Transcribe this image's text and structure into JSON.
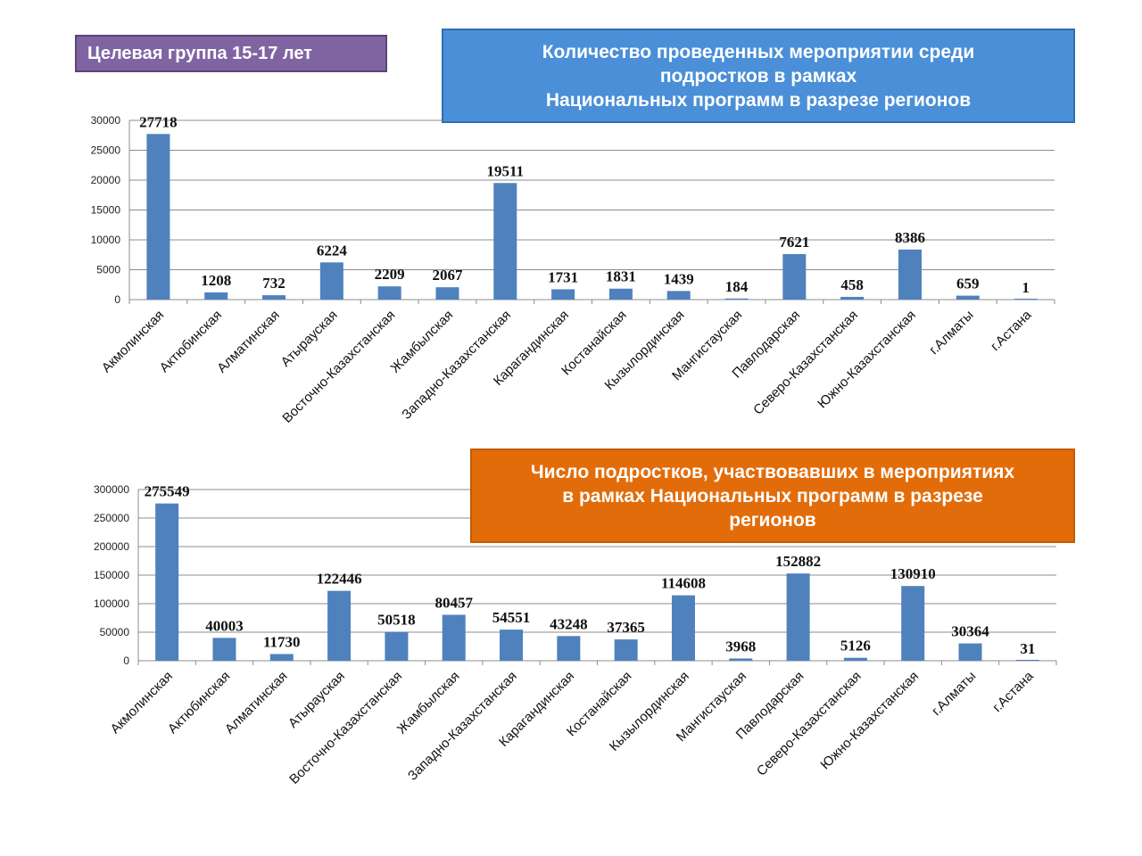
{
  "header": {
    "group_label": "Целевая группа 15-17 лет"
  },
  "colors": {
    "bar": "#4f81bd",
    "grid": "#8c8c8c",
    "badge": "#8064a2",
    "title_blue": "#4a8fd8",
    "title_orange": "#e36c0a"
  },
  "chart_data": [
    {
      "type": "bar",
      "title": "Количество проведенных мероприятии среди подростков в рамках Национальных программ в разрезе регионов",
      "title_lines": [
        "Количество проведенных мероприятии среди",
        "подростков в рамках",
        "Национальных программ в разрезе регионов"
      ],
      "categories": [
        "Акмолинская",
        "Актюбинская",
        "Алматинская",
        "Атырауская",
        "Восточно-Казахстанская",
        "Жамбылская",
        "Западно-Казахстанская",
        "Карагандинская",
        "Костанайская",
        "Кызылординская",
        "Мангистауская",
        "Павлодарская",
        "Северо-Казахстанская",
        "Южно-Казахстанская",
        "г.Алматы",
        "г.Астана"
      ],
      "values": [
        27718,
        1208,
        732,
        6224,
        2209,
        2067,
        19511,
        1731,
        1831,
        1439,
        184,
        7621,
        458,
        8386,
        659,
        1
      ],
      "ylim": [
        0,
        30000
      ],
      "yticks": [
        0,
        5000,
        10000,
        15000,
        20000,
        25000,
        30000
      ],
      "grid": true,
      "legend": "none"
    },
    {
      "type": "bar",
      "title": "Число подростков, участвовавших в мероприятиях в рамках Национальных программ в разрезе регионов",
      "title_lines": [
        "Число подростков, участвовавших в мероприятиях",
        "в рамках Национальных программ в разрезе",
        "регионов"
      ],
      "categories": [
        "Акмолинская",
        "Актюбинская",
        "Алматинская",
        "Атырауская",
        "Восточно-Казахстанская",
        "Жамбылская",
        "Западно-Казахстанская",
        "Карагандинская",
        "Костанайская",
        "Кызылординская",
        "Мангистауская",
        "Павлодарская",
        "Северо-Казахстанская",
        "Южно-Казахстанская",
        "г.Алматы",
        "г.Астана"
      ],
      "values": [
        275549,
        40003,
        11730,
        122446,
        50518,
        80457,
        54551,
        43248,
        37365,
        114608,
        3968,
        152882,
        5126,
        130910,
        30364,
        31
      ],
      "ylim": [
        0,
        300000
      ],
      "yticks": [
        0,
        50000,
        100000,
        150000,
        200000,
        250000,
        300000
      ],
      "grid": true,
      "legend": "none"
    }
  ]
}
